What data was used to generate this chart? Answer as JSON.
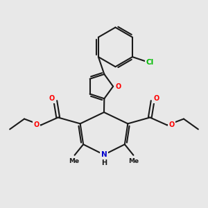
{
  "background_color": "#e8e8e8",
  "bond_color": "#1a1a1a",
  "bond_width": 1.5,
  "atom_colors": {
    "O": "#ff0000",
    "N": "#0000cd",
    "Cl": "#00bb00",
    "C": "#1a1a1a",
    "H": "#1a1a1a"
  },
  "font_size": 7.0,
  "fig_size": [
    3.0,
    3.0
  ],
  "dpi": 100
}
